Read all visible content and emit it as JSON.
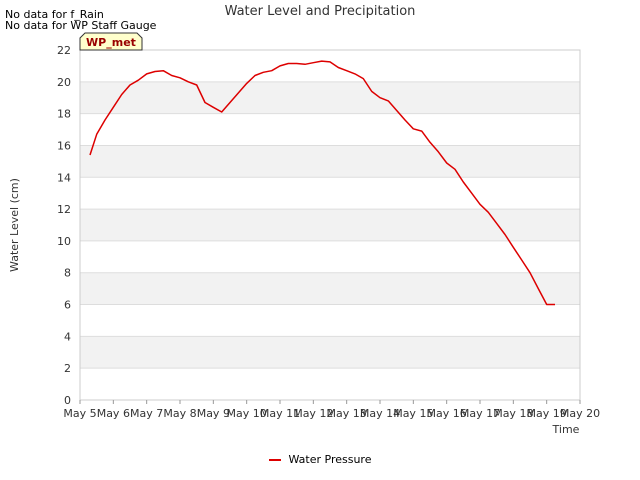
{
  "no_data_notes": [
    "No data for f_Rain",
    "No data for WP Staff Gauge"
  ],
  "badge": {
    "label": "WP_met",
    "fill": "#ffffcc",
    "text_color": "#990000"
  },
  "chart_data": {
    "type": "line",
    "title": "Water Level and Precipitation",
    "xlabel": "Time",
    "ylabel": "Water Level (cm)",
    "ylim": [
      0,
      22
    ],
    "yticks": [
      0,
      2,
      4,
      6,
      8,
      10,
      12,
      14,
      16,
      18,
      20,
      22
    ],
    "xlim": [
      5,
      20
    ],
    "xticks": [
      {
        "v": 5,
        "label": "May 5"
      },
      {
        "v": 6,
        "label": "May 6"
      },
      {
        "v": 7,
        "label": "May 7"
      },
      {
        "v": 8,
        "label": "May 8"
      },
      {
        "v": 9,
        "label": "May 9"
      },
      {
        "v": 10,
        "label": "May 10"
      },
      {
        "v": 11,
        "label": "May 11"
      },
      {
        "v": 12,
        "label": "May 12"
      },
      {
        "v": 13,
        "label": "May 13"
      },
      {
        "v": 14,
        "label": "May 14"
      },
      {
        "v": 15,
        "label": "May 15"
      },
      {
        "v": 16,
        "label": "May 16"
      },
      {
        "v": 17,
        "label": "May 17"
      },
      {
        "v": 18,
        "label": "May 18"
      },
      {
        "v": 19,
        "label": "May 19"
      },
      {
        "v": 20,
        "label": "May 20"
      }
    ],
    "grid": true,
    "legend_position": "bottom",
    "series": [
      {
        "name": "Water Pressure",
        "color": "#dd0000",
        "x": [
          5.3,
          5.5,
          5.75,
          6.0,
          6.25,
          6.5,
          6.75,
          7.0,
          7.25,
          7.5,
          7.75,
          8.0,
          8.25,
          8.5,
          8.75,
          9.0,
          9.25,
          9.5,
          9.75,
          10.0,
          10.25,
          10.5,
          10.75,
          11.0,
          11.25,
          11.5,
          11.75,
          12.0,
          12.25,
          12.5,
          12.75,
          13.0,
          13.25,
          13.5,
          13.75,
          14.0,
          14.25,
          14.5,
          14.75,
          15.0,
          15.25,
          15.5,
          15.75,
          16.0,
          16.25,
          16.5,
          16.75,
          17.0,
          17.25,
          17.5,
          17.75,
          18.0,
          18.25,
          18.5,
          18.75,
          19.0,
          19.25
        ],
        "y": [
          15.4,
          16.7,
          17.6,
          18.4,
          19.2,
          19.8,
          20.1,
          20.5,
          20.65,
          20.7,
          20.4,
          20.25,
          20.0,
          19.8,
          18.7,
          18.4,
          18.1,
          18.7,
          19.3,
          19.9,
          20.4,
          20.6,
          20.7,
          21.0,
          21.15,
          21.15,
          21.1,
          21.2,
          21.3,
          21.25,
          20.9,
          20.7,
          20.5,
          20.2,
          19.4,
          19.0,
          18.8,
          18.2,
          17.6,
          17.05,
          16.9,
          16.2,
          15.6,
          14.9,
          14.5,
          13.7,
          13.0,
          12.3,
          11.8,
          11.1,
          10.4,
          9.6,
          8.8,
          8.0,
          7.0,
          6.0,
          6.0
        ]
      }
    ]
  }
}
